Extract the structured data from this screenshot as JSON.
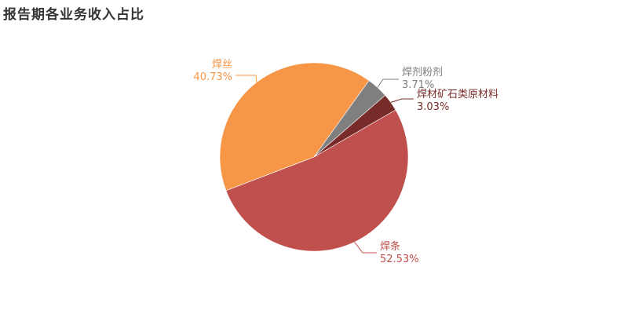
{
  "chart_data": {
    "type": "pie",
    "title": "报告期各业务收入占比",
    "slices": [
      {
        "name": "焊条",
        "value": 52.53,
        "label": "52.53%",
        "color": "#c0504d",
        "label_color": "#c0504d"
      },
      {
        "name": "焊丝",
        "value": 40.73,
        "label": "40.73%",
        "color": "#f79646",
        "label_color": "#f79646"
      },
      {
        "name": "焊剂粉剂",
        "value": 3.71,
        "label": "3.71%",
        "color": "#7f7f7f",
        "label_color": "#7f7f7f"
      },
      {
        "name": "焊材矿石类原材料",
        "value": 3.03,
        "label": "3.03%",
        "color": "#772c2a",
        "label_color": "#772c2a"
      }
    ]
  }
}
